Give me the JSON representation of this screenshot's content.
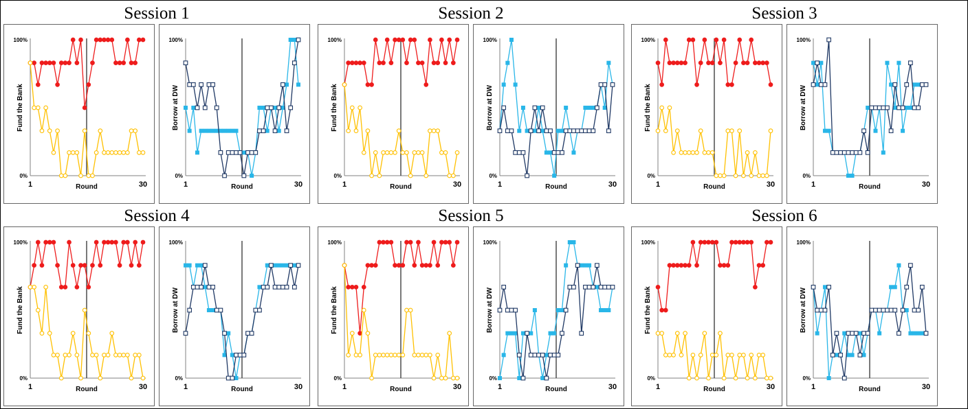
{
  "colors": {
    "fund_high": "#EE1C1C",
    "fund_low": "#FFC000",
    "dw_light": "#29B6E8",
    "dw_dark": "#1F3864",
    "axis": "#808080",
    "divider": "#404040"
  },
  "labels": {
    "y_top": "100%",
    "y_bottom": "0%",
    "x_start": "1",
    "x_end": "30"
  },
  "sessions": [
    {
      "title": "Session 1",
      "fund": {
        "ylabel": "Fund the Bank",
        "xlabel": "Round"
      },
      "dw": {
        "ylabel": "Borrow at DW",
        "xlabel": "Round"
      }
    },
    {
      "title": "Session 2",
      "fund": {
        "ylabel": "Fund the Bank",
        "xlabel": "Round"
      },
      "dw": {
        "ylabel": "Borrow at DW",
        "xlabel": "Round"
      }
    },
    {
      "title": "Session 3",
      "fund": {
        "ylabel": "Fund the Bank",
        "xlabel": "Round"
      },
      "dw": {
        "ylabel": "Borrow at DW",
        "xlabel": "Round"
      }
    },
    {
      "title": "Session 4",
      "fund": {
        "ylabel": "Fund the Bank",
        "xlabel": "Round"
      },
      "dw": {
        "ylabel": "Borrow at DW",
        "xlabel": "Round"
      }
    },
    {
      "title": "Session 5",
      "fund": {
        "ylabel": "Fund the Bank",
        "xlabel": "Round"
      },
      "dw": {
        "ylabel": "Borrow at DW",
        "xlabel": "Round"
      }
    },
    {
      "title": "Session 6",
      "fund": {
        "ylabel": "Fund the Bank",
        "xlabel": "Round"
      },
      "dw": {
        "ylabel": "Borrow at DW",
        "xlabel": "Round"
      }
    }
  ],
  "chart_data": [
    {
      "type": "line",
      "session": "Session 1",
      "ylabel": "Fund the Bank",
      "xlabel": "Round",
      "x_range": [
        1,
        30
      ],
      "y_range": [
        0,
        100
      ],
      "divider_round": 15,
      "series": [
        {
          "color": "red",
          "marker": "circle",
          "values": [
            83,
            83,
            67,
            83,
            83,
            83,
            83,
            67,
            83,
            83,
            83,
            100,
            83,
            100,
            50,
            67,
            83,
            100,
            100,
            100,
            100,
            100,
            83,
            83,
            83,
            100,
            83,
            83,
            100,
            100
          ]
        },
        {
          "color": "yellow",
          "marker": "circle",
          "values": [
            83,
            50,
            50,
            33,
            50,
            33,
            17,
            33,
            0,
            0,
            17,
            17,
            17,
            0,
            33,
            0,
            0,
            17,
            33,
            17,
            17,
            17,
            17,
            17,
            17,
            17,
            33,
            33,
            17,
            17
          ]
        }
      ]
    },
    {
      "type": "line",
      "session": "Session 1",
      "ylabel": "Borrow at DW",
      "xlabel": "Round",
      "x_range": [
        1,
        30
      ],
      "y_range": [
        0,
        100
      ],
      "divider_round": 15,
      "series": [
        {
          "color": "light-blue",
          "marker": "filled-square",
          "values": [
            50,
            33,
            50,
            17,
            33,
            33,
            33,
            33,
            33,
            33,
            33,
            33,
            33,
            33,
            17,
            17,
            17,
            0,
            17,
            50,
            50,
            33,
            50,
            50,
            33,
            50,
            67,
            100,
            100,
            67
          ]
        },
        {
          "color": "dark-blue",
          "marker": "hollow-square",
          "values": [
            83,
            67,
            67,
            50,
            67,
            50,
            67,
            67,
            50,
            17,
            0,
            17,
            17,
            17,
            17,
            0,
            17,
            17,
            17,
            33,
            33,
            50,
            50,
            33,
            50,
            67,
            33,
            50,
            83,
            100
          ]
        }
      ]
    },
    {
      "type": "line",
      "session": "Session 2",
      "ylabel": "Fund the Bank",
      "xlabel": "Round",
      "x_range": [
        1,
        30
      ],
      "y_range": [
        0,
        100
      ],
      "divider_round": 15,
      "series": [
        {
          "color": "red",
          "marker": "circle",
          "values": [
            67,
            83,
            83,
            83,
            83,
            83,
            67,
            67,
            100,
            83,
            83,
            100,
            83,
            100,
            100,
            100,
            83,
            100,
            100,
            83,
            83,
            67,
            100,
            83,
            83,
            100,
            83,
            100,
            83,
            100
          ]
        },
        {
          "color": "yellow",
          "marker": "circle",
          "values": [
            67,
            33,
            50,
            33,
            50,
            17,
            33,
            0,
            17,
            0,
            17,
            17,
            17,
            17,
            33,
            17,
            17,
            0,
            17,
            17,
            17,
            0,
            33,
            33,
            33,
            17,
            17,
            0,
            0,
            17
          ]
        }
      ]
    },
    {
      "type": "line",
      "session": "Session 2",
      "ylabel": "Borrow at DW",
      "xlabel": "Round",
      "x_range": [
        1,
        30
      ],
      "y_range": [
        0,
        100
      ],
      "divider_round": 15,
      "series": [
        {
          "color": "light-blue",
          "marker": "filled-square",
          "values": [
            33,
            67,
            83,
            100,
            67,
            33,
            50,
            33,
            33,
            33,
            50,
            33,
            17,
            17,
            0,
            33,
            33,
            50,
            33,
            17,
            33,
            33,
            50,
            50,
            50,
            50,
            67,
            50,
            83,
            67
          ]
        },
        {
          "color": "dark-blue",
          "marker": "hollow-square",
          "values": [
            33,
            50,
            33,
            33,
            17,
            17,
            17,
            0,
            33,
            50,
            33,
            50,
            33,
            33,
            17,
            17,
            17,
            33,
            33,
            33,
            33,
            33,
            33,
            33,
            33,
            50,
            67,
            67,
            33,
            67
          ]
        }
      ]
    },
    {
      "type": "line",
      "session": "Session 3",
      "ylabel": "Fund the Bank",
      "xlabel": "Round",
      "x_range": [
        1,
        30
      ],
      "y_range": [
        0,
        100
      ],
      "divider_round": 15,
      "series": [
        {
          "color": "red",
          "marker": "circle",
          "values": [
            83,
            67,
            100,
            83,
            83,
            83,
            83,
            83,
            100,
            100,
            67,
            83,
            100,
            83,
            83,
            100,
            83,
            100,
            67,
            67,
            83,
            100,
            83,
            83,
            100,
            83,
            83,
            83,
            83,
            67
          ]
        },
        {
          "color": "yellow",
          "marker": "circle",
          "values": [
            33,
            50,
            33,
            50,
            17,
            33,
            17,
            17,
            17,
            17,
            17,
            33,
            17,
            17,
            17,
            0,
            0,
            0,
            33,
            33,
            0,
            33,
            0,
            17,
            0,
            17,
            0,
            0,
            0,
            33
          ]
        }
      ]
    },
    {
      "type": "line",
      "session": "Session 3",
      "ylabel": "Borrow at DW",
      "xlabel": "Round",
      "x_range": [
        1,
        30
      ],
      "y_range": [
        0,
        100
      ],
      "divider_round": 15,
      "series": [
        {
          "color": "light-blue",
          "marker": "filled-square",
          "values": [
            83,
            67,
            83,
            33,
            33,
            17,
            17,
            17,
            17,
            0,
            0,
            17,
            17,
            33,
            50,
            50,
            33,
            50,
            17,
            83,
            67,
            50,
            83,
            33,
            50,
            50,
            67,
            67,
            67,
            67
          ]
        },
        {
          "color": "dark-blue",
          "marker": "hollow-square",
          "values": [
            67,
            83,
            67,
            67,
            100,
            17,
            17,
            17,
            17,
            17,
            17,
            17,
            17,
            33,
            17,
            50,
            50,
            50,
            50,
            50,
            33,
            67,
            50,
            50,
            67,
            83,
            50,
            50,
            67,
            67
          ]
        }
      ]
    },
    {
      "type": "line",
      "session": "Session 4",
      "ylabel": "Fund the Bank",
      "xlabel": "Round",
      "x_range": [
        1,
        30
      ],
      "y_range": [
        0,
        100
      ],
      "divider_round": 15,
      "series": [
        {
          "color": "red",
          "marker": "circle",
          "values": [
            67,
            83,
            100,
            83,
            100,
            100,
            100,
            83,
            67,
            67,
            100,
            83,
            67,
            83,
            83,
            67,
            83,
            100,
            83,
            100,
            100,
            100,
            100,
            83,
            100,
            100,
            83,
            100,
            83,
            100
          ]
        },
        {
          "color": "yellow",
          "marker": "circle",
          "values": [
            67,
            67,
            50,
            33,
            67,
            33,
            17,
            17,
            0,
            17,
            17,
            33,
            17,
            0,
            50,
            33,
            17,
            17,
            0,
            17,
            17,
            33,
            17,
            17,
            17,
            17,
            0,
            17,
            17,
            0
          ]
        }
      ]
    },
    {
      "type": "line",
      "session": "Session 4",
      "ylabel": "Borrow at DW",
      "xlabel": "Round",
      "x_range": [
        1,
        30
      ],
      "y_range": [
        0,
        100
      ],
      "divider_round": 15,
      "series": [
        {
          "color": "light-blue",
          "marker": "filled-square",
          "values": [
            83,
            83,
            67,
            83,
            83,
            67,
            50,
            50,
            50,
            50,
            17,
            33,
            17,
            0,
            17,
            17,
            33,
            33,
            50,
            67,
            67,
            83,
            83,
            83,
            83,
            83,
            83,
            83,
            83,
            83
          ]
        },
        {
          "color": "dark-blue",
          "marker": "hollow-square",
          "values": [
            33,
            50,
            67,
            67,
            67,
            83,
            67,
            67,
            50,
            50,
            33,
            0,
            0,
            17,
            17,
            17,
            33,
            33,
            50,
            50,
            67,
            67,
            83,
            67,
            67,
            67,
            67,
            83,
            67,
            83
          ]
        }
      ]
    },
    {
      "type": "line",
      "session": "Session 5",
      "ylabel": "Fund the Bank",
      "xlabel": "Round",
      "x_range": [
        1,
        30
      ],
      "y_range": [
        0,
        100
      ],
      "divider_round": 15,
      "series": [
        {
          "color": "red",
          "marker": "circle",
          "values": [
            83,
            67,
            67,
            67,
            33,
            67,
            83,
            83,
            83,
            100,
            100,
            100,
            100,
            83,
            83,
            83,
            100,
            100,
            83,
            100,
            83,
            83,
            83,
            100,
            83,
            100,
            100,
            100,
            83,
            100
          ]
        },
        {
          "color": "yellow",
          "marker": "circle",
          "values": [
            83,
            17,
            33,
            17,
            17,
            50,
            33,
            0,
            17,
            17,
            17,
            17,
            17,
            17,
            17,
            17,
            50,
            50,
            17,
            17,
            17,
            17,
            17,
            0,
            17,
            0,
            0,
            33,
            0,
            0
          ]
        }
      ]
    },
    {
      "type": "line",
      "session": "Session 5",
      "ylabel": "Borrow at DW",
      "xlabel": "Round",
      "x_range": [
        1,
        30
      ],
      "y_range": [
        0,
        100
      ],
      "divider_round": 15,
      "series": [
        {
          "color": "light-blue",
          "marker": "filled-square",
          "values": [
            0,
            17,
            33,
            33,
            33,
            0,
            33,
            33,
            33,
            50,
            17,
            0,
            17,
            33,
            33,
            50,
            50,
            83,
            100,
            100,
            83,
            83,
            83,
            83,
            67,
            67,
            50,
            50,
            50,
            67
          ]
        },
        {
          "color": "dark-blue",
          "marker": "hollow-square",
          "values": [
            50,
            67,
            50,
            50,
            50,
            17,
            0,
            33,
            17,
            17,
            17,
            17,
            0,
            17,
            17,
            17,
            33,
            50,
            67,
            67,
            83,
            33,
            67,
            67,
            67,
            83,
            67,
            67,
            67,
            67
          ]
        }
      ]
    },
    {
      "type": "line",
      "session": "Session 6",
      "ylabel": "Fund the Bank",
      "xlabel": "Round",
      "x_range": [
        1,
        30
      ],
      "y_range": [
        0,
        100
      ],
      "divider_round": 15,
      "series": [
        {
          "color": "red",
          "marker": "circle",
          "values": [
            67,
            50,
            50,
            83,
            83,
            83,
            83,
            83,
            83,
            100,
            83,
            100,
            100,
            100,
            100,
            100,
            83,
            83,
            83,
            100,
            100,
            100,
            100,
            100,
            100,
            67,
            83,
            83,
            100,
            100
          ]
        },
        {
          "color": "yellow",
          "marker": "circle",
          "values": [
            33,
            33,
            17,
            17,
            17,
            33,
            17,
            33,
            0,
            17,
            0,
            17,
            33,
            0,
            17,
            17,
            33,
            0,
            17,
            17,
            0,
            17,
            17,
            0,
            17,
            0,
            17,
            17,
            0,
            0
          ]
        }
      ]
    },
    {
      "type": "line",
      "session": "Session 6",
      "ylabel": "Borrow at DW",
      "xlabel": "Round",
      "x_range": [
        1,
        30
      ],
      "y_range": [
        0,
        100
      ],
      "divider_round": 15,
      "series": [
        {
          "color": "light-blue",
          "marker": "filled-square",
          "values": [
            67,
            33,
            50,
            67,
            0,
            17,
            17,
            17,
            33,
            17,
            17,
            33,
            33,
            17,
            33,
            50,
            50,
            33,
            50,
            50,
            67,
            67,
            83,
            50,
            50,
            33,
            33,
            33,
            33,
            33
          ]
        },
        {
          "color": "dark-blue",
          "marker": "hollow-square",
          "values": [
            67,
            50,
            50,
            50,
            67,
            17,
            33,
            17,
            0,
            33,
            33,
            33,
            17,
            33,
            33,
            50,
            50,
            50,
            50,
            50,
            50,
            50,
            33,
            50,
            67,
            83,
            50,
            50,
            67,
            33
          ]
        }
      ]
    }
  ]
}
